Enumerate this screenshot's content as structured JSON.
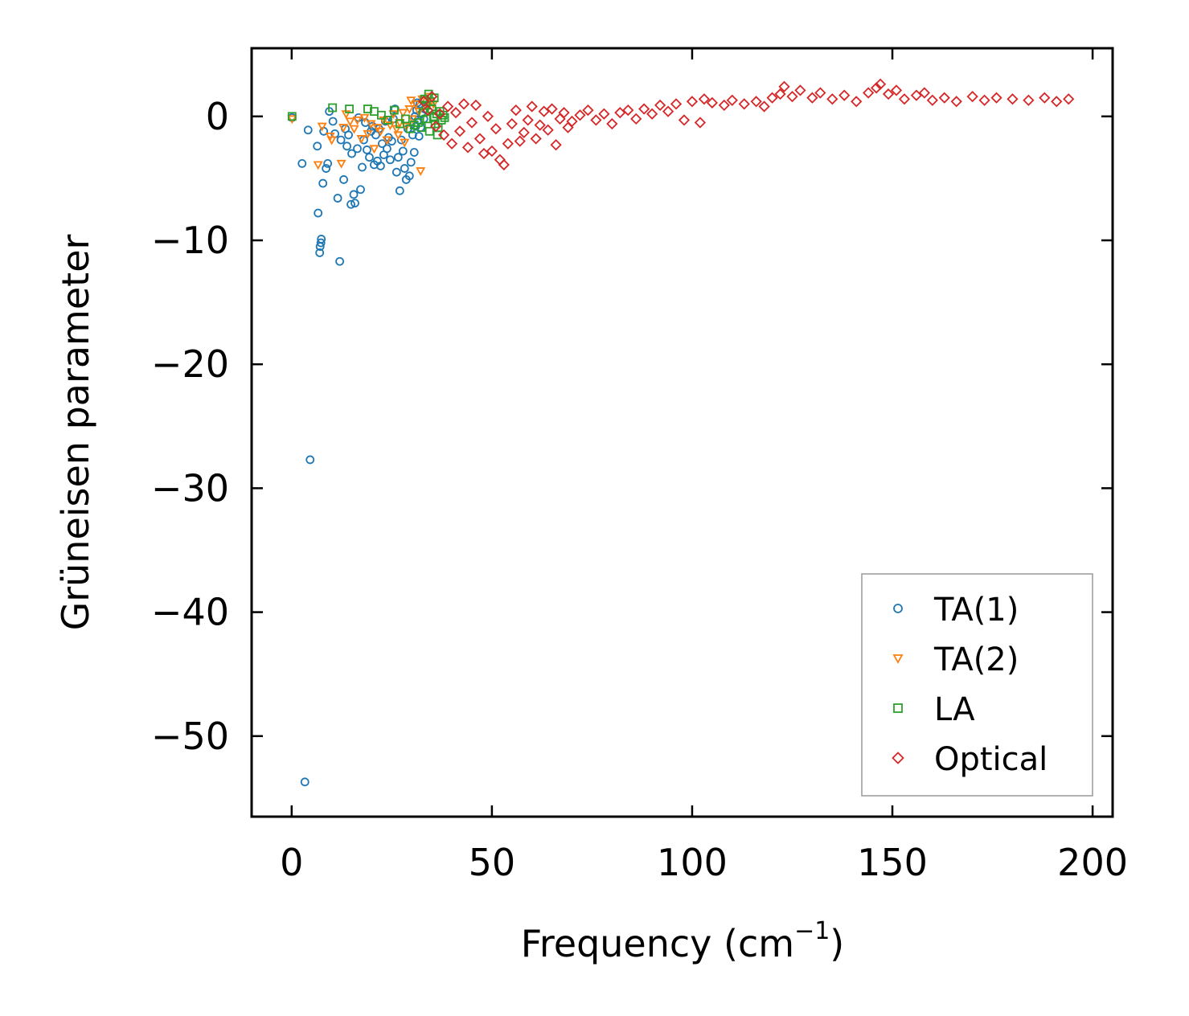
{
  "chart_data": {
    "type": "scatter",
    "xlabel": "Frequency (cm",
    "xlabel_sup": "−1",
    "xlabel_end": ")",
    "ylabel": "Grüneisen parameter",
    "xlim": [
      -10,
      205
    ],
    "ylim": [
      -56.5,
      5.5
    ],
    "xticks": [
      0,
      50,
      100,
      150,
      200
    ],
    "xtick_labels": [
      "0",
      "50",
      "100",
      "150",
      "200"
    ],
    "yticks": [
      0,
      -10,
      -20,
      -30,
      -40,
      -50
    ],
    "ytick_labels": [
      "0",
      "−10",
      "−20",
      "−30",
      "−40",
      "−50"
    ],
    "grid": false,
    "legend_position": "bottom-right",
    "series": [
      {
        "name": "TA(1)",
        "color": "#1f77b4",
        "marker": "circle",
        "points": [
          [
            0.1,
            -0.1
          ],
          [
            2.6,
            -3.8
          ],
          [
            3.3,
            -53.7
          ],
          [
            4.1,
            -1.1
          ],
          [
            4.6,
            -27.7
          ],
          [
            6.4,
            -2.4
          ],
          [
            6.6,
            -7.8
          ],
          [
            7.0,
            -11.0
          ],
          [
            7.1,
            -10.5
          ],
          [
            7.3,
            -10.2
          ],
          [
            7.4,
            -9.9
          ],
          [
            7.8,
            -5.4
          ],
          [
            8.0,
            -1.2
          ],
          [
            8.6,
            -4.2
          ],
          [
            9.0,
            -3.8
          ],
          [
            9.4,
            0.4
          ],
          [
            10.3,
            -0.4
          ],
          [
            10.8,
            -1.4
          ],
          [
            11.5,
            -6.6
          ],
          [
            12.0,
            -11.7
          ],
          [
            12.3,
            -1.9
          ],
          [
            13.0,
            -5.1
          ],
          [
            13.4,
            -1.0
          ],
          [
            13.8,
            -2.4
          ],
          [
            14.2,
            -1.5
          ],
          [
            14.8,
            -7.1
          ],
          [
            15.0,
            -3.0
          ],
          [
            15.5,
            -6.3
          ],
          [
            15.8,
            -7.0
          ],
          [
            16.4,
            -2.6
          ],
          [
            16.7,
            -0.1
          ],
          [
            17.2,
            -5.9
          ],
          [
            17.6,
            -4.1
          ],
          [
            18.0,
            -1.9
          ],
          [
            18.4,
            -0.5
          ],
          [
            18.8,
            -2.7
          ],
          [
            19.4,
            -3.3
          ],
          [
            19.8,
            -1.2
          ],
          [
            20.2,
            -0.8
          ],
          [
            20.6,
            -3.9
          ],
          [
            21.0,
            -1.5
          ],
          [
            21.4,
            -3.6
          ],
          [
            21.8,
            -1.0
          ],
          [
            22.2,
            -4.0
          ],
          [
            22.6,
            -2.2
          ],
          [
            23.0,
            -3.1
          ],
          [
            23.4,
            -0.4
          ],
          [
            23.8,
            -2.6
          ],
          [
            24.2,
            -1.7
          ],
          [
            24.6,
            -3.5
          ],
          [
            25.0,
            -2.0
          ],
          [
            25.4,
            -0.2
          ],
          [
            25.8,
            0.6
          ],
          [
            26.2,
            -4.5
          ],
          [
            26.6,
            -3.3
          ],
          [
            27.0,
            -6.0
          ],
          [
            27.4,
            -1.9
          ],
          [
            27.8,
            -2.8
          ],
          [
            28.2,
            -4.2
          ],
          [
            28.6,
            -5.1
          ],
          [
            29.0,
            -1.0
          ],
          [
            29.4,
            -4.8
          ],
          [
            29.8,
            -3.7
          ],
          [
            30.2,
            -1.5
          ],
          [
            30.6,
            -2.9
          ],
          [
            31.0,
            -0.8
          ],
          [
            31.2,
            0.5
          ],
          [
            31.6,
            -0.3
          ],
          [
            32.0,
            1.0
          ],
          [
            32.4,
            0.2
          ],
          [
            32.8,
            1.3
          ],
          [
            33.2,
            0.6
          ],
          [
            31.4,
            1.1
          ],
          [
            32.2,
            -0.9
          ],
          [
            33.0,
            -0.2
          ],
          [
            30.8,
            0.0
          ],
          [
            31.8,
            -1.6
          ]
        ]
      },
      {
        "name": "TA(2)",
        "color": "#ff7f0e",
        "marker": "triangle-down",
        "points": [
          [
            0.1,
            -0.2
          ],
          [
            6.6,
            -3.9
          ],
          [
            7.6,
            -0.8
          ],
          [
            9.6,
            -1.6
          ],
          [
            10.0,
            -1.9
          ],
          [
            12.4,
            -3.8
          ],
          [
            12.9,
            -0.9
          ],
          [
            13.6,
            0.2
          ],
          [
            14.6,
            -0.4
          ],
          [
            15.6,
            -1.0
          ],
          [
            16.4,
            -0.3
          ],
          [
            17.4,
            -1.8
          ],
          [
            18.2,
            -0.1
          ],
          [
            19.0,
            -1.4
          ],
          [
            19.8,
            -0.6
          ],
          [
            20.6,
            -2.6
          ],
          [
            21.4,
            -0.9
          ],
          [
            22.2,
            -1.2
          ],
          [
            23.0,
            -0.3
          ],
          [
            23.8,
            -1.9
          ],
          [
            24.6,
            -0.7
          ],
          [
            25.4,
            0.2
          ],
          [
            26.2,
            -1.0
          ],
          [
            27.0,
            -0.5
          ],
          [
            27.8,
            0.3
          ],
          [
            28.6,
            -0.8
          ],
          [
            29.4,
            0.6
          ],
          [
            30.2,
            -0.2
          ],
          [
            31.0,
            1.0
          ],
          [
            31.8,
            0.4
          ],
          [
            32.6,
            1.4
          ],
          [
            33.4,
            0.9
          ],
          [
            34.2,
            1.6
          ],
          [
            34.8,
            1.2
          ],
          [
            32.2,
            -4.4
          ],
          [
            35.4,
            1.0
          ],
          [
            29.8,
            1.3
          ],
          [
            28.2,
            -2.1
          ],
          [
            26.6,
            -1.5
          ]
        ]
      },
      {
        "name": "LA",
        "color": "#2ca02c",
        "marker": "square",
        "points": [
          [
            0.1,
            0.0
          ],
          [
            10.2,
            0.7
          ],
          [
            14.4,
            0.6
          ],
          [
            19.0,
            0.6
          ],
          [
            20.6,
            0.4
          ],
          [
            22.4,
            0.1
          ],
          [
            24.0,
            -0.3
          ],
          [
            25.6,
            0.5
          ],
          [
            27.0,
            -0.6
          ],
          [
            28.4,
            -0.2
          ],
          [
            29.6,
            -1.0
          ],
          [
            30.6,
            -0.7
          ],
          [
            31.6,
            -0.5
          ],
          [
            32.4,
            -0.9
          ],
          [
            33.2,
            1.4
          ],
          [
            33.8,
            -0.2
          ],
          [
            34.2,
            1.8
          ],
          [
            34.6,
            1.2
          ],
          [
            35.0,
            0.6
          ],
          [
            35.4,
            -0.1
          ],
          [
            35.8,
            -0.6
          ],
          [
            36.2,
            0.2
          ],
          [
            36.6,
            -0.9
          ],
          [
            37.0,
            0.4
          ],
          [
            37.4,
            -0.3
          ],
          [
            37.8,
            0.1
          ],
          [
            38.2,
            -0.1
          ],
          [
            34.4,
            -1.2
          ],
          [
            35.6,
            1.5
          ],
          [
            36.4,
            -1.5
          ],
          [
            33.6,
            0.9
          ],
          [
            32.8,
            0.3
          ]
        ]
      },
      {
        "name": "Optical",
        "color": "#d62728",
        "marker": "diamond",
        "points": [
          [
            33.0,
            1.2
          ],
          [
            34.0,
            0.5
          ],
          [
            35.0,
            1.6
          ],
          [
            36.0,
            -0.8
          ],
          [
            37.0,
            0.2
          ],
          [
            38.0,
            -1.5
          ],
          [
            39.0,
            0.8
          ],
          [
            40.0,
            -2.2
          ],
          [
            41.0,
            0.3
          ],
          [
            42.0,
            -1.2
          ],
          [
            43.0,
            1.0
          ],
          [
            44.0,
            -2.5
          ],
          [
            45.0,
            -0.5
          ],
          [
            46.0,
            0.9
          ],
          [
            47.0,
            -1.8
          ],
          [
            48.0,
            -3.0
          ],
          [
            49.0,
            0.0
          ],
          [
            50.0,
            -2.8
          ],
          [
            51.0,
            -1.0
          ],
          [
            52.0,
            -3.5
          ],
          [
            53.0,
            -3.9
          ],
          [
            54.0,
            -2.2
          ],
          [
            55.0,
            -0.6
          ],
          [
            56.0,
            0.5
          ],
          [
            57.0,
            -2.0
          ],
          [
            58.0,
            -1.3
          ],
          [
            59.0,
            -0.3
          ],
          [
            60.0,
            0.8
          ],
          [
            61.0,
            -1.8
          ],
          [
            62.0,
            -0.7
          ],
          [
            63.0,
            0.4
          ],
          [
            64.0,
            -1.1
          ],
          [
            65.0,
            0.6
          ],
          [
            66.0,
            -2.3
          ],
          [
            67.0,
            -0.2
          ],
          [
            68.0,
            0.3
          ],
          [
            69.0,
            -0.9
          ],
          [
            70.0,
            -0.4
          ],
          [
            72.0,
            0.1
          ],
          [
            74.0,
            0.5
          ],
          [
            76.0,
            -0.3
          ],
          [
            78.0,
            0.2
          ],
          [
            80.0,
            -0.6
          ],
          [
            82.0,
            0.3
          ],
          [
            84.0,
            0.5
          ],
          [
            86.0,
            -0.2
          ],
          [
            88.0,
            0.6
          ],
          [
            90.0,
            0.2
          ],
          [
            92.0,
            0.9
          ],
          [
            94.0,
            0.4
          ],
          [
            96.0,
            1.0
          ],
          [
            98.0,
            -0.3
          ],
          [
            100.0,
            1.2
          ],
          [
            102.0,
            -0.5
          ],
          [
            103.0,
            1.4
          ],
          [
            105.0,
            1.1
          ],
          [
            108.0,
            0.9
          ],
          [
            110.0,
            1.3
          ],
          [
            113.0,
            1.0
          ],
          [
            116.0,
            1.2
          ],
          [
            118.0,
            0.8
          ],
          [
            120.0,
            1.5
          ],
          [
            122.0,
            1.8
          ],
          [
            123.0,
            2.4
          ],
          [
            125.0,
            1.6
          ],
          [
            127.0,
            2.1
          ],
          [
            130.0,
            1.5
          ],
          [
            132.0,
            1.9
          ],
          [
            135.0,
            1.4
          ],
          [
            138.0,
            1.7
          ],
          [
            141.0,
            1.2
          ],
          [
            144.0,
            1.9
          ],
          [
            146.0,
            2.3
          ],
          [
            147.0,
            2.6
          ],
          [
            149.0,
            1.8
          ],
          [
            151.0,
            2.1
          ],
          [
            153.0,
            1.4
          ],
          [
            156.0,
            1.7
          ],
          [
            158.0,
            1.9
          ],
          [
            160.0,
            1.3
          ],
          [
            163.0,
            1.5
          ],
          [
            166.0,
            1.2
          ],
          [
            170.0,
            1.6
          ],
          [
            173.0,
            1.3
          ],
          [
            176.0,
            1.5
          ],
          [
            180.0,
            1.4
          ],
          [
            184.0,
            1.3
          ],
          [
            188.0,
            1.5
          ],
          [
            191.0,
            1.2
          ],
          [
            194.0,
            1.4
          ]
        ]
      }
    ]
  }
}
